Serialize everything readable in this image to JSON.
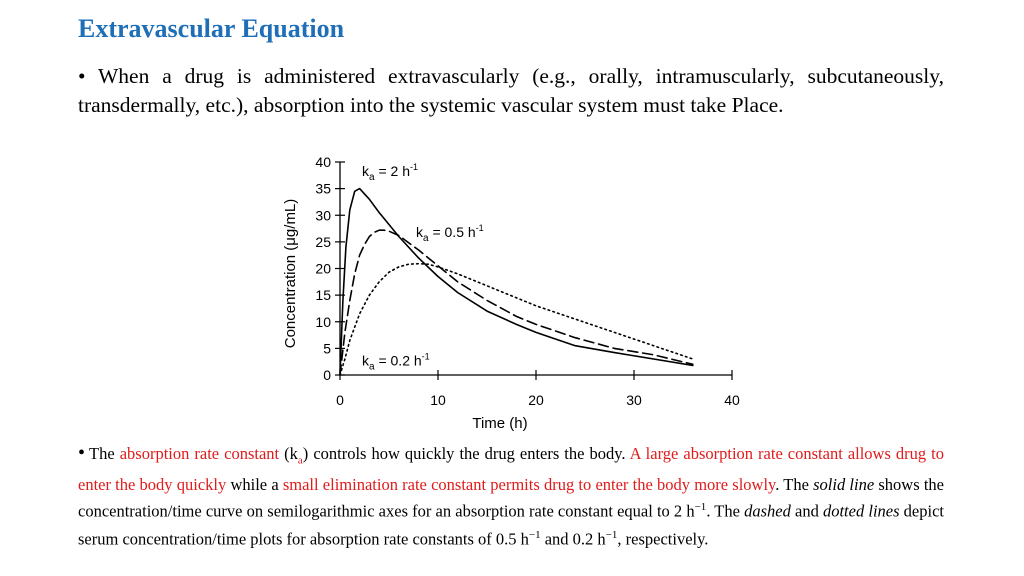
{
  "title": "Extravascular Equation",
  "bullet1": {
    "marker": "•",
    "text": "When a drug is administered extravascularly (e.g., orally, intramuscularly, subcutaneously, transdermally, etc.), absorption into the systemic vascular system must take Place."
  },
  "bullet2": {
    "marker": "•",
    "t1": "The ",
    "t2": "absorption rate constant",
    "t3": " (k",
    "t3sub": "a",
    "t4": ") controls how quickly the drug enters the body. ",
    "t5": "A large absorption rate constant allows drug to enter the body quickly",
    "t6": " while a ",
    "t7": "small elimination rate constant permits drug to enter the body more slowly",
    "t8": ". The ",
    "t9": "solid line",
    "t10": " shows the concentration/time curve on semilogarithmic axes for an absorption rate constant equal to 2 h",
    "t10sup": "−1",
    "t11": ". The ",
    "t12": "dashed",
    "t13": " and ",
    "t14": "dotted lines",
    "t15": " depict serum concentration/time plots for absorption rate constants of 0.5 h",
    "t15sup": "−1",
    "t16": " and 0.2 h",
    "t16sup": "−1",
    "t17": ", respectively."
  },
  "chart_data": {
    "type": "line",
    "xlabel": "Time (h)",
    "ylabel": "Concentration (μg/mL)",
    "xlim": [
      0,
      40
    ],
    "ylim": [
      0,
      40
    ],
    "xticks": [
      0,
      10,
      20,
      30,
      40
    ],
    "yticks": [
      0,
      5,
      10,
      15,
      20,
      25,
      30,
      35,
      40
    ],
    "grid": false,
    "series": [
      {
        "name": "ka = 2 h-1",
        "label_main": "k",
        "label_sub": "a",
        "label_rest": " = 2 h",
        "label_sup": "-1",
        "style": "solid",
        "x": [
          0,
          0.3,
          0.6,
          1,
          1.5,
          2,
          3,
          4,
          6,
          8,
          10,
          12,
          15,
          18,
          20,
          24,
          28,
          32,
          36
        ],
        "y": [
          0,
          14,
          24,
          31,
          34.5,
          35,
          33,
          30.5,
          26,
          22,
          18.5,
          15.5,
          12,
          9.5,
          8,
          5.5,
          4.2,
          3,
          1.8
        ]
      },
      {
        "name": "ka = 0.5 h-1",
        "label_main": "k",
        "label_sub": "a",
        "label_rest": " = 0.5 h",
        "label_sup": "-1",
        "style": "dashed",
        "x": [
          0,
          0.5,
          1,
          1.5,
          2,
          2.5,
          3,
          3.5,
          4,
          4.5,
          5,
          6,
          8,
          10,
          12,
          15,
          18,
          20,
          24,
          28,
          32,
          36
        ],
        "y": [
          0,
          8,
          14,
          19,
          22.5,
          24.5,
          26,
          26.8,
          27.2,
          27.2,
          27,
          26.2,
          23.5,
          20.5,
          17.5,
          14,
          11,
          9.5,
          7,
          5,
          3.8,
          2
        ]
      },
      {
        "name": "ka = 0.2 h-1",
        "label_main": "k",
        "label_sub": "a",
        "label_rest": " = 0.2 h",
        "label_sup": "-1",
        "style": "dotted",
        "x": [
          0,
          0.5,
          1,
          2,
          3,
          4,
          5,
          6,
          7,
          8,
          9,
          10,
          12,
          14,
          16,
          18,
          20,
          24,
          28,
          32,
          36
        ],
        "y": [
          0,
          3,
          6.5,
          11.5,
          15,
          17.5,
          19.3,
          20.3,
          20.8,
          20.9,
          20.8,
          20.3,
          19,
          17.5,
          16,
          14.5,
          13,
          10.5,
          8,
          5.5,
          3
        ]
      }
    ]
  }
}
